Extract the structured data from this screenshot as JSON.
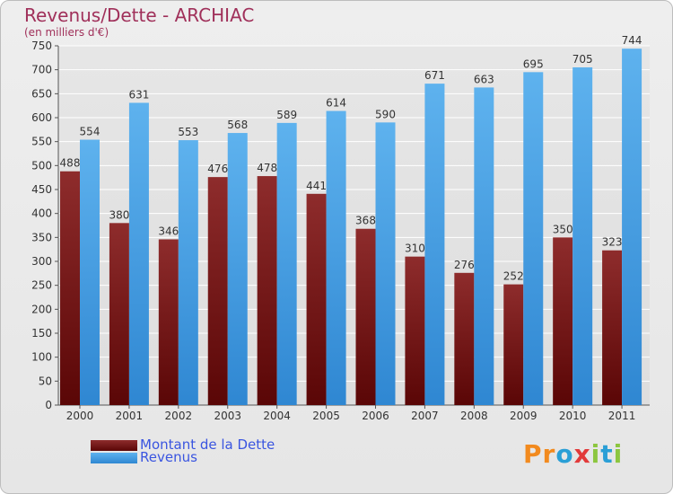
{
  "chart_data": {
    "type": "bar",
    "title": "Revenus/Dette - ARCHIAC",
    "subtitle": "(en milliers d'€)",
    "categories": [
      "2000",
      "2001",
      "2002",
      "2003",
      "2004",
      "2005",
      "2006",
      "2007",
      "2008",
      "2009",
      "2010",
      "2011"
    ],
    "series": [
      {
        "name": "Montant de la Dette",
        "color": "#7a1a1a",
        "values": [
          488,
          380,
          346,
          476,
          478,
          441,
          368,
          310,
          276,
          252,
          350,
          323
        ]
      },
      {
        "name": "Revenus",
        "color": "#4aa3e6",
        "values": [
          554,
          631,
          553,
          568,
          589,
          614,
          590,
          671,
          663,
          695,
          705,
          744
        ]
      }
    ],
    "ylim": [
      0,
      750
    ],
    "yticks": [
      0,
      50,
      100,
      150,
      200,
      250,
      300,
      350,
      400,
      450,
      500,
      550,
      600,
      650,
      700,
      750
    ],
    "grid": true,
    "legend_position": "bottom-left"
  },
  "logo": {
    "letters": [
      "P",
      "r",
      "o",
      "x",
      "i",
      "t",
      "i"
    ],
    "colors": [
      "#f28a1e",
      "#f28a1e",
      "#2a9fd6",
      "#e23a3a",
      "#8cc63f",
      "#2a9fd6",
      "#8cc63f"
    ]
  }
}
